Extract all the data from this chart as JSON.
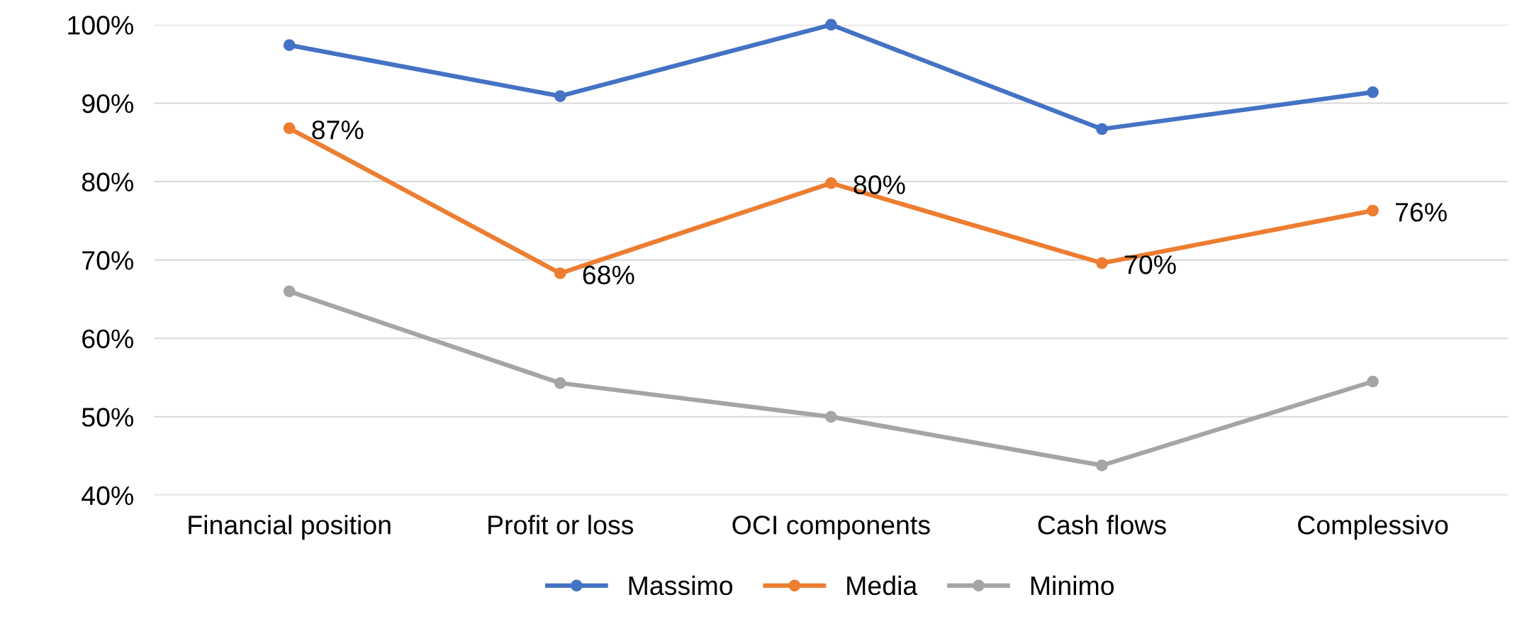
{
  "chart_data": {
    "type": "line",
    "categories": [
      "Financial position",
      "Profit or loss",
      "OCI components",
      "Cash flows",
      "Complessivo"
    ],
    "series": [
      {
        "name": "Massimo",
        "color": "#4472c4",
        "values": [
          97.4,
          90.9,
          100,
          86.7,
          91.4
        ]
      },
      {
        "name": "Media",
        "color": "#ed7d31",
        "values": [
          86.8,
          68.3,
          79.8,
          69.6,
          76.3
        ],
        "value_labels": [
          "87%",
          "68%",
          "80%",
          "70%",
          "76%"
        ]
      },
      {
        "name": "Minimo",
        "color": "#a5a5a5",
        "values": [
          66.0,
          54.3,
          50.0,
          43.8,
          54.5
        ]
      }
    ],
    "ylim": [
      40,
      100
    ],
    "yticks": [
      {
        "value": 40,
        "label": "40%"
      },
      {
        "value": 50,
        "label": "50%"
      },
      {
        "value": 60,
        "label": "60%"
      },
      {
        "value": 70,
        "label": "70%"
      },
      {
        "value": 80,
        "label": "80%"
      },
      {
        "value": 90,
        "label": "90%"
      },
      {
        "value": 100,
        "label": "100%"
      }
    ],
    "grid": "y",
    "legend": "bottom",
    "marker": "circle",
    "line_style": "solid"
  }
}
